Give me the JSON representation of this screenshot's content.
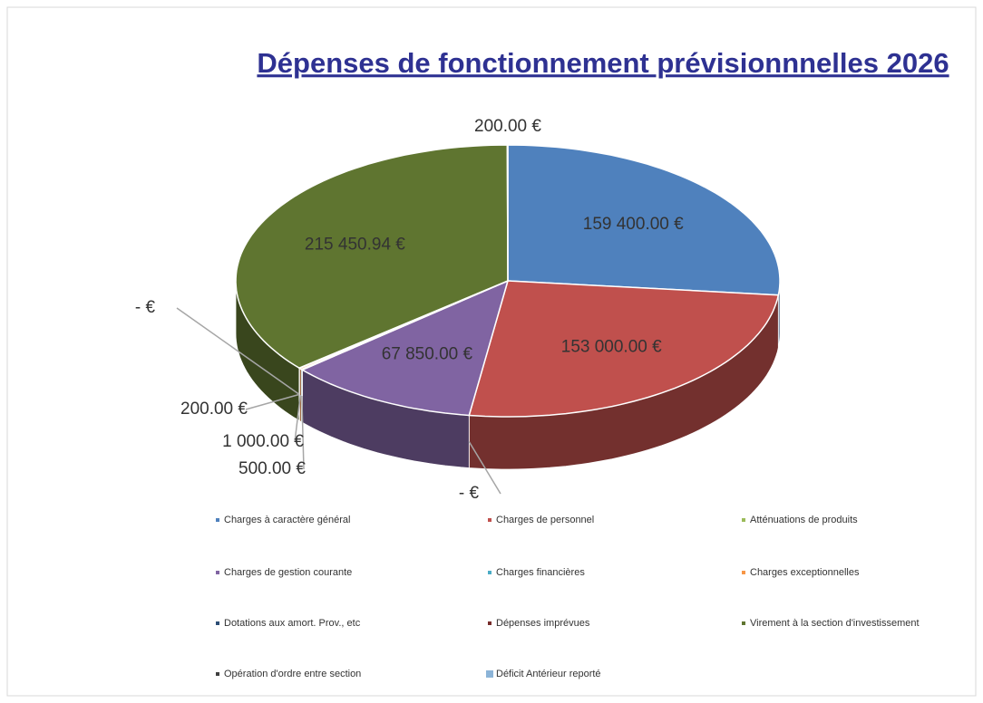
{
  "chart_data": {
    "type": "pie3d",
    "title": "Dépenses de fonctionnement prévisionnnelles 2026",
    "categories": [
      "Charges à caractère général",
      "Charges de personnel",
      "Atténuations de produits",
      "Charges de gestion courante",
      "Charges financières",
      "Charges exceptionnelles",
      "Dotations aux amort. Prov., etc",
      "Dépenses imprévues",
      "Virement à la section d'investissement",
      "Opération d'ordre entre section",
      "Déficit Antérieur reporté"
    ],
    "values": [
      159400,
      153000,
      0,
      67850,
      500,
      1000,
      200,
      0,
      215450.94,
      200,
      null
    ],
    "value_labels": [
      "159 400.00 €",
      "153 000.00 €",
      "- €",
      "67 850.00 €",
      "500.00 €",
      "1 000.00 €",
      "200.00 €",
      "- €",
      "215 450.94 €",
      "200.00 €",
      null
    ],
    "colors": [
      "#4f81bd",
      "#c0504d",
      "#9bbb59",
      "#8064a2",
      "#4bacc6",
      "#f79646",
      "#2c4d75",
      "#772c2a",
      "#5f7530",
      "#3f3f3f",
      "#8cb4d8"
    ],
    "legend": "bottom"
  }
}
